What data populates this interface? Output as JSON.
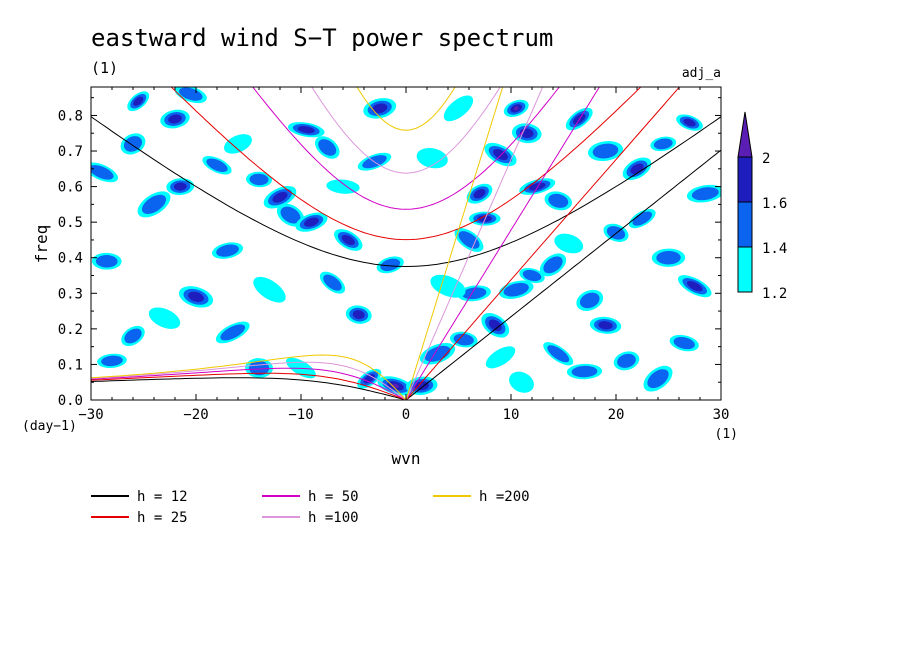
{
  "chart_data": {
    "type": "heatmap",
    "title": "eastward wind S−T power spectrum",
    "subtitle": "(1)",
    "tag": "adj_a",
    "xlabel": "wvn",
    "ylabel": "freq",
    "x_unit": "(1)",
    "y_unit": "(day−1)",
    "xlim": [
      -30,
      30
    ],
    "ylim": [
      0,
      0.88
    ],
    "x_ticks": [
      -30,
      -20,
      -10,
      0,
      10,
      20,
      30
    ],
    "x_tick_labels": [
      "−30",
      "−20",
      "−10",
      "0",
      "10",
      "20",
      "30"
    ],
    "y_ticks": [
      0.0,
      0.1,
      0.2,
      0.3,
      0.4,
      0.5,
      0.6,
      0.7,
      0.8
    ],
    "y_tick_labels": [
      "0.0",
      "0.1",
      "0.2",
      "0.3",
      "0.4",
      "0.5",
      "0.6",
      "0.7",
      "0.8"
    ],
    "colorbar": {
      "levels": [
        1.2,
        1.4,
        1.6,
        2
      ],
      "labels": [
        "1.2",
        "1.4",
        "1.6",
        "2"
      ],
      "colors": [
        "#00ffff",
        "#0a64f0",
        "#1e1ebe",
        "#5a1eb4"
      ]
    },
    "shading_blobs": [
      {
        "x": -25.5,
        "y": 0.84,
        "level": 2
      },
      {
        "x": -22,
        "y": 0.79,
        "level": 2
      },
      {
        "x": -20.5,
        "y": 0.86,
        "level": 1
      },
      {
        "x": -24,
        "y": 0.55,
        "level": 1
      },
      {
        "x": -21.5,
        "y": 0.6,
        "level": 2
      },
      {
        "x": -18,
        "y": 0.66,
        "level": 1
      },
      {
        "x": -12,
        "y": 0.57,
        "level": 2
      },
      {
        "x": -14,
        "y": 0.62,
        "level": 1
      },
      {
        "x": -11,
        "y": 0.52,
        "level": 1
      },
      {
        "x": -9,
        "y": 0.5,
        "level": 2
      },
      {
        "x": -9.5,
        "y": 0.76,
        "level": 2
      },
      {
        "x": -7.5,
        "y": 0.71,
        "level": 1
      },
      {
        "x": -17,
        "y": 0.42,
        "level": 1
      },
      {
        "x": -20,
        "y": 0.29,
        "level": 2
      },
      {
        "x": -26,
        "y": 0.18,
        "level": 1
      },
      {
        "x": -28,
        "y": 0.11,
        "level": 1
      },
      {
        "x": -23,
        "y": 0.23,
        "level": 0
      },
      {
        "x": -16.5,
        "y": 0.19,
        "level": 1
      },
      {
        "x": -14,
        "y": 0.09,
        "level": 1
      },
      {
        "x": -5.5,
        "y": 0.45,
        "level": 2
      },
      {
        "x": -3,
        "y": 0.67,
        "level": 1
      },
      {
        "x": -4.5,
        "y": 0.24,
        "level": 2
      },
      {
        "x": -7,
        "y": 0.33,
        "level": 1
      },
      {
        "x": -2.5,
        "y": 0.82,
        "level": 2
      },
      {
        "x": -1,
        "y": 0.04,
        "level": 3
      },
      {
        "x": -3.5,
        "y": 0.06,
        "level": 2
      },
      {
        "x": 1.5,
        "y": 0.04,
        "level": 2
      },
      {
        "x": -29,
        "y": 0.64,
        "level": 1
      },
      {
        "x": -26,
        "y": 0.72,
        "level": 1
      },
      {
        "x": -28.5,
        "y": 0.39,
        "level": 1
      },
      {
        "x": -10,
        "y": 0.09,
        "level": 0
      },
      {
        "x": 3,
        "y": 0.13,
        "level": 1
      },
      {
        "x": 5.5,
        "y": 0.17,
        "level": 1
      },
      {
        "x": 8.5,
        "y": 0.21,
        "level": 2
      },
      {
        "x": 10.5,
        "y": 0.31,
        "level": 1
      },
      {
        "x": 12,
        "y": 0.35,
        "level": 1
      },
      {
        "x": 14,
        "y": 0.38,
        "level": 1
      },
      {
        "x": 6.5,
        "y": 0.3,
        "level": 1
      },
      {
        "x": 4,
        "y": 0.32,
        "level": 0
      },
      {
        "x": 7,
        "y": 0.58,
        "level": 2
      },
      {
        "x": 7.5,
        "y": 0.51,
        "level": 2
      },
      {
        "x": 9,
        "y": 0.69,
        "level": 2
      },
      {
        "x": 10.5,
        "y": 0.82,
        "level": 3
      },
      {
        "x": 11.5,
        "y": 0.75,
        "level": 2
      },
      {
        "x": 6,
        "y": 0.45,
        "level": 1
      },
      {
        "x": 12.5,
        "y": 0.6,
        "level": 2
      },
      {
        "x": 14.5,
        "y": 0.56,
        "level": 1
      },
      {
        "x": 16.5,
        "y": 0.79,
        "level": 2
      },
      {
        "x": 19,
        "y": 0.7,
        "level": 1
      },
      {
        "x": 20,
        "y": 0.47,
        "level": 1
      },
      {
        "x": 22.5,
        "y": 0.51,
        "level": 1
      },
      {
        "x": 25,
        "y": 0.4,
        "level": 1
      },
      {
        "x": 27.5,
        "y": 0.32,
        "level": 2
      },
      {
        "x": 17.5,
        "y": 0.28,
        "level": 1
      },
      {
        "x": 19,
        "y": 0.21,
        "level": 2
      },
      {
        "x": 14.5,
        "y": 0.13,
        "level": 1
      },
      {
        "x": 21,
        "y": 0.11,
        "level": 1
      },
      {
        "x": 26.5,
        "y": 0.16,
        "level": 1
      },
      {
        "x": 24,
        "y": 0.06,
        "level": 1
      },
      {
        "x": 28.5,
        "y": 0.58,
        "level": 1
      },
      {
        "x": 27,
        "y": 0.78,
        "level": 2
      },
      {
        "x": 22,
        "y": 0.65,
        "level": 2
      },
      {
        "x": 17,
        "y": 0.08,
        "level": 1
      },
      {
        "x": 11,
        "y": 0.05,
        "level": 0
      },
      {
        "x": -16,
        "y": 0.72,
        "level": 0
      },
      {
        "x": -6,
        "y": 0.6,
        "level": 0
      },
      {
        "x": -13,
        "y": 0.31,
        "level": 0
      },
      {
        "x": -1.5,
        "y": 0.38,
        "level": 1
      },
      {
        "x": 2.5,
        "y": 0.68,
        "level": 0
      },
      {
        "x": 5,
        "y": 0.82,
        "level": 0
      },
      {
        "x": 24.5,
        "y": 0.72,
        "level": 1
      },
      {
        "x": 15.5,
        "y": 0.44,
        "level": 0
      },
      {
        "x": 9,
        "y": 0.12,
        "level": 0
      }
    ],
    "series": [
      {
        "name": "h = 12",
        "h": 12,
        "color": "#000000"
      },
      {
        "name": "h = 25",
        "h": 25,
        "color": "#e60000"
      },
      {
        "name": "h = 50",
        "h": 50,
        "color": "#d200c8"
      },
      {
        "name": "h =100",
        "h": 100,
        "color": "#dc96dc"
      },
      {
        "name": "h =200",
        "h": 200,
        "color": "#f0c800"
      }
    ]
  }
}
